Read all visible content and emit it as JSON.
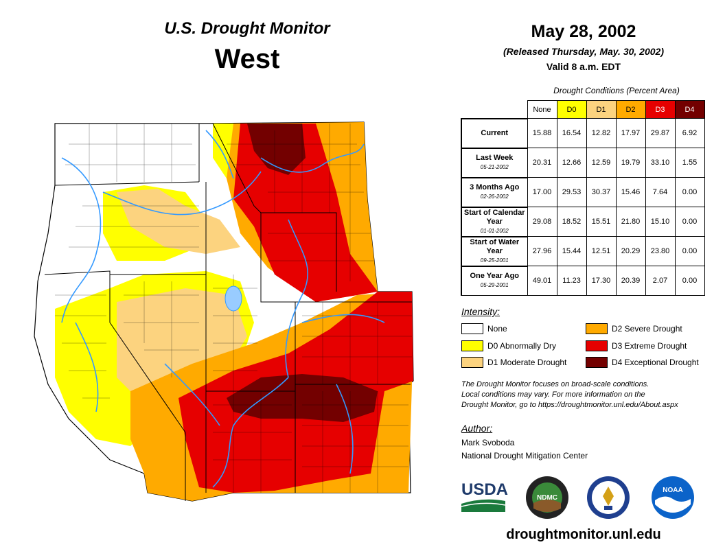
{
  "header": {
    "title": "U.S. Drought Monitor",
    "region": "West",
    "date": "May 28, 2002",
    "released": "(Released Thursday, May. 30, 2002)",
    "valid": "Valid 8 a.m. EDT"
  },
  "table": {
    "caption": "Drought Conditions (Percent Area)",
    "columns": [
      "None",
      "D0",
      "D1",
      "D2",
      "D3",
      "D4"
    ],
    "rows": [
      {
        "label": "Current",
        "date": "",
        "values": [
          "15.88",
          "16.54",
          "12.82",
          "17.97",
          "29.87",
          "6.92"
        ]
      },
      {
        "label": "Last Week",
        "date": "05-21-2002",
        "values": [
          "20.31",
          "12.66",
          "12.59",
          "19.79",
          "33.10",
          "1.55"
        ]
      },
      {
        "label": "3 Months Ago",
        "date": "02-26-2002",
        "values": [
          "17.00",
          "29.53",
          "30.37",
          "15.46",
          "7.64",
          "0.00"
        ]
      },
      {
        "label": "Start of Calendar Year",
        "date": "01-01-2002",
        "values": [
          "29.08",
          "18.52",
          "15.51",
          "21.80",
          "15.10",
          "0.00"
        ]
      },
      {
        "label": "Start of Water Year",
        "date": "09-25-2001",
        "values": [
          "27.96",
          "15.44",
          "12.51",
          "20.29",
          "23.80",
          "0.00"
        ]
      },
      {
        "label": "One Year Ago",
        "date": "05-29-2001",
        "values": [
          "49.01",
          "11.23",
          "17.30",
          "20.39",
          "2.07",
          "0.00"
        ]
      }
    ]
  },
  "legend": {
    "title": "Intensity:",
    "items": [
      {
        "label": "None",
        "color": "#ffffff"
      },
      {
        "label": "D0 Abnormally Dry",
        "color": "#ffff00"
      },
      {
        "label": "D1 Moderate Drought",
        "color": "#fcd37f"
      },
      {
        "label": "D2 Severe Drought",
        "color": "#ffaa00"
      },
      {
        "label": "D3 Extreme Drought",
        "color": "#e60000"
      },
      {
        "label": "D4 Exceptional Drought",
        "color": "#730000"
      }
    ]
  },
  "disclaimer": {
    "line1": "The Drought Monitor focuses on broad-scale conditions.",
    "line2": "Local conditions may vary. For more information on the",
    "line3": "Drought Monitor, go to https://droughtmonitor.unl.edu/About.aspx"
  },
  "author": {
    "title": "Author:",
    "name": "Mark Svoboda",
    "org": "National Drought Mitigation Center"
  },
  "logos": {
    "usda": "USDA",
    "ndmc": "NDMC",
    "noaa": "NOAA"
  },
  "footer": {
    "url": "droughtmonitor.unl.edu"
  }
}
